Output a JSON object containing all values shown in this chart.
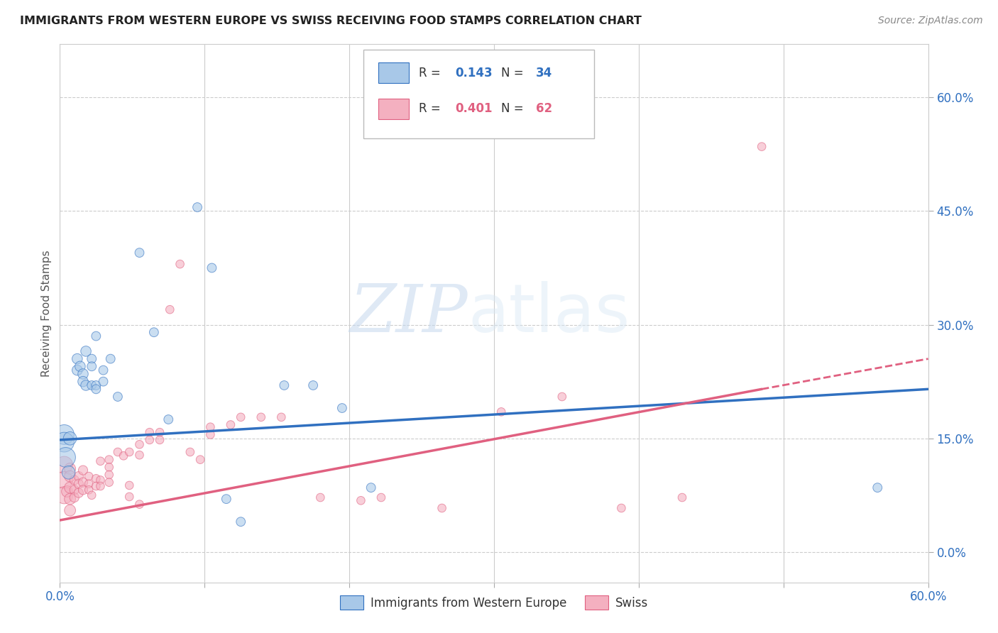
{
  "title": "IMMIGRANTS FROM WESTERN EUROPE VS SWISS RECEIVING FOOD STAMPS CORRELATION CHART",
  "source": "Source: ZipAtlas.com",
  "ylabel": "Receiving Food Stamps",
  "y_ticks": [
    0.0,
    0.15,
    0.3,
    0.45,
    0.6
  ],
  "y_tick_labels": [
    "0.0%",
    "15.0%",
    "30.0%",
    "45.0%",
    "60.0%"
  ],
  "xlim": [
    0.0,
    0.6
  ],
  "ylim": [
    -0.04,
    0.67
  ],
  "color_blue": "#a8c8e8",
  "color_pink": "#f4b0c0",
  "color_blue_line": "#3070c0",
  "color_pink_line": "#e06080",
  "color_blue_text": "#3070c0",
  "color_pink_text": "#e06080",
  "watermark_zip": "ZIP",
  "watermark_atlas": "atlas",
  "blue_points": [
    [
      0.003,
      0.155
    ],
    [
      0.003,
      0.145
    ],
    [
      0.004,
      0.125
    ],
    [
      0.006,
      0.105
    ],
    [
      0.007,
      0.15
    ],
    [
      0.012,
      0.24
    ],
    [
      0.012,
      0.255
    ],
    [
      0.014,
      0.245
    ],
    [
      0.016,
      0.235
    ],
    [
      0.016,
      0.225
    ],
    [
      0.018,
      0.265
    ],
    [
      0.018,
      0.22
    ],
    [
      0.022,
      0.255
    ],
    [
      0.022,
      0.245
    ],
    [
      0.022,
      0.22
    ],
    [
      0.025,
      0.285
    ],
    [
      0.025,
      0.22
    ],
    [
      0.025,
      0.215
    ],
    [
      0.03,
      0.24
    ],
    [
      0.03,
      0.225
    ],
    [
      0.035,
      0.255
    ],
    [
      0.04,
      0.205
    ],
    [
      0.055,
      0.395
    ],
    [
      0.065,
      0.29
    ],
    [
      0.075,
      0.175
    ],
    [
      0.095,
      0.455
    ],
    [
      0.105,
      0.375
    ],
    [
      0.115,
      0.07
    ],
    [
      0.125,
      0.04
    ],
    [
      0.155,
      0.22
    ],
    [
      0.175,
      0.22
    ],
    [
      0.195,
      0.19
    ],
    [
      0.215,
      0.085
    ],
    [
      0.565,
      0.085
    ]
  ],
  "pink_points": [
    [
      0.003,
      0.115
    ],
    [
      0.003,
      0.095
    ],
    [
      0.003,
      0.075
    ],
    [
      0.005,
      0.08
    ],
    [
      0.007,
      0.11
    ],
    [
      0.007,
      0.1
    ],
    [
      0.007,
      0.085
    ],
    [
      0.007,
      0.07
    ],
    [
      0.007,
      0.055
    ],
    [
      0.01,
      0.095
    ],
    [
      0.01,
      0.082
    ],
    [
      0.01,
      0.072
    ],
    [
      0.013,
      0.1
    ],
    [
      0.013,
      0.09
    ],
    [
      0.013,
      0.078
    ],
    [
      0.016,
      0.108
    ],
    [
      0.016,
      0.092
    ],
    [
      0.016,
      0.082
    ],
    [
      0.02,
      0.1
    ],
    [
      0.02,
      0.09
    ],
    [
      0.02,
      0.082
    ],
    [
      0.022,
      0.075
    ],
    [
      0.025,
      0.097
    ],
    [
      0.025,
      0.087
    ],
    [
      0.028,
      0.12
    ],
    [
      0.028,
      0.095
    ],
    [
      0.028,
      0.087
    ],
    [
      0.034,
      0.122
    ],
    [
      0.034,
      0.112
    ],
    [
      0.034,
      0.102
    ],
    [
      0.034,
      0.092
    ],
    [
      0.04,
      0.132
    ],
    [
      0.044,
      0.127
    ],
    [
      0.048,
      0.132
    ],
    [
      0.048,
      0.088
    ],
    [
      0.048,
      0.073
    ],
    [
      0.055,
      0.142
    ],
    [
      0.055,
      0.128
    ],
    [
      0.055,
      0.063
    ],
    [
      0.062,
      0.158
    ],
    [
      0.062,
      0.148
    ],
    [
      0.069,
      0.158
    ],
    [
      0.069,
      0.148
    ],
    [
      0.076,
      0.32
    ],
    [
      0.083,
      0.38
    ],
    [
      0.09,
      0.132
    ],
    [
      0.097,
      0.122
    ],
    [
      0.104,
      0.165
    ],
    [
      0.104,
      0.155
    ],
    [
      0.118,
      0.168
    ],
    [
      0.125,
      0.178
    ],
    [
      0.139,
      0.178
    ],
    [
      0.153,
      0.178
    ],
    [
      0.18,
      0.072
    ],
    [
      0.208,
      0.068
    ],
    [
      0.222,
      0.072
    ],
    [
      0.264,
      0.058
    ],
    [
      0.305,
      0.185
    ],
    [
      0.347,
      0.205
    ],
    [
      0.388,
      0.058
    ],
    [
      0.43,
      0.072
    ],
    [
      0.485,
      0.535
    ]
  ],
  "blue_line": [
    [
      0.0,
      0.148
    ],
    [
      0.6,
      0.215
    ]
  ],
  "pink_line_solid": [
    [
      0.0,
      0.042
    ],
    [
      0.485,
      0.215
    ]
  ],
  "pink_line_dashed": [
    [
      0.485,
      0.215
    ],
    [
      0.6,
      0.255
    ]
  ]
}
